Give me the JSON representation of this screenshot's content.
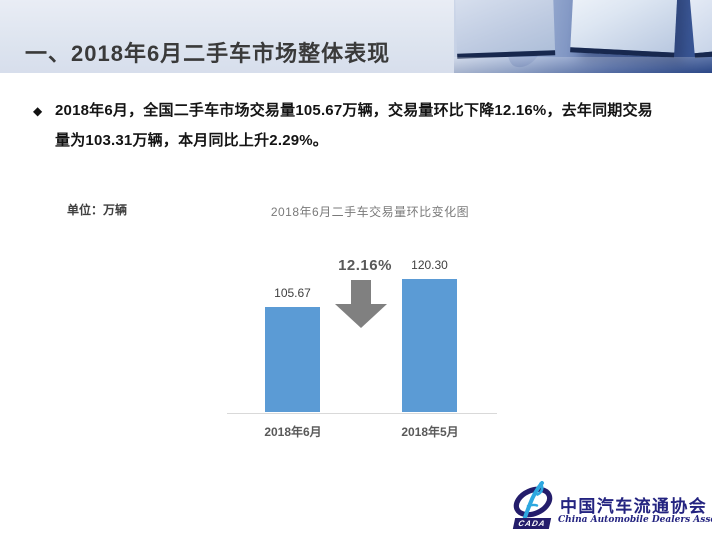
{
  "slide": {
    "header": {
      "title": "一、2018年6月二手车市场整体表现"
    },
    "bullet": {
      "marker": "◆",
      "lines": [
        "2018年6月，全国二手车市场交易量105.67万辆，交易量环比下降12.16%，去年同期交易",
        "量为103.31万辆，本月同比上升2.29%。"
      ]
    },
    "logo": {
      "acronym": "CADA",
      "name_cn": "中国汽车流通协会",
      "name_en": "China Automobile Dealers Association"
    }
  },
  "chart_data": {
    "type": "bar",
    "title": "2018年6月二手车交易量环比变化图",
    "unit_label": "单位：万辆",
    "unit": "万辆",
    "categories": [
      "2018年6月",
      "2018年5月"
    ],
    "values": [
      105.67,
      120.3
    ],
    "value_labels": [
      "105.67",
      "120.30"
    ],
    "annotation": "12.16%",
    "annotation_meaning": "环比下降",
    "xlabel": "",
    "ylabel": "",
    "ylim": [
      50,
      130
    ],
    "grid": false,
    "legend": "none",
    "bar_color": "#5B9BD5"
  },
  "colors": {
    "bar": "#5B9BD5",
    "arrow": "#808080",
    "axis": "#D9D9D9",
    "title_text": "#3A3A3A",
    "chart_text": "#595959",
    "logo_navy": "#232380",
    "logo_lightblue": "#2EA8E0",
    "header_bg_left": "#E9EDF5",
    "header_bg_right": "#2E4C8E"
  }
}
